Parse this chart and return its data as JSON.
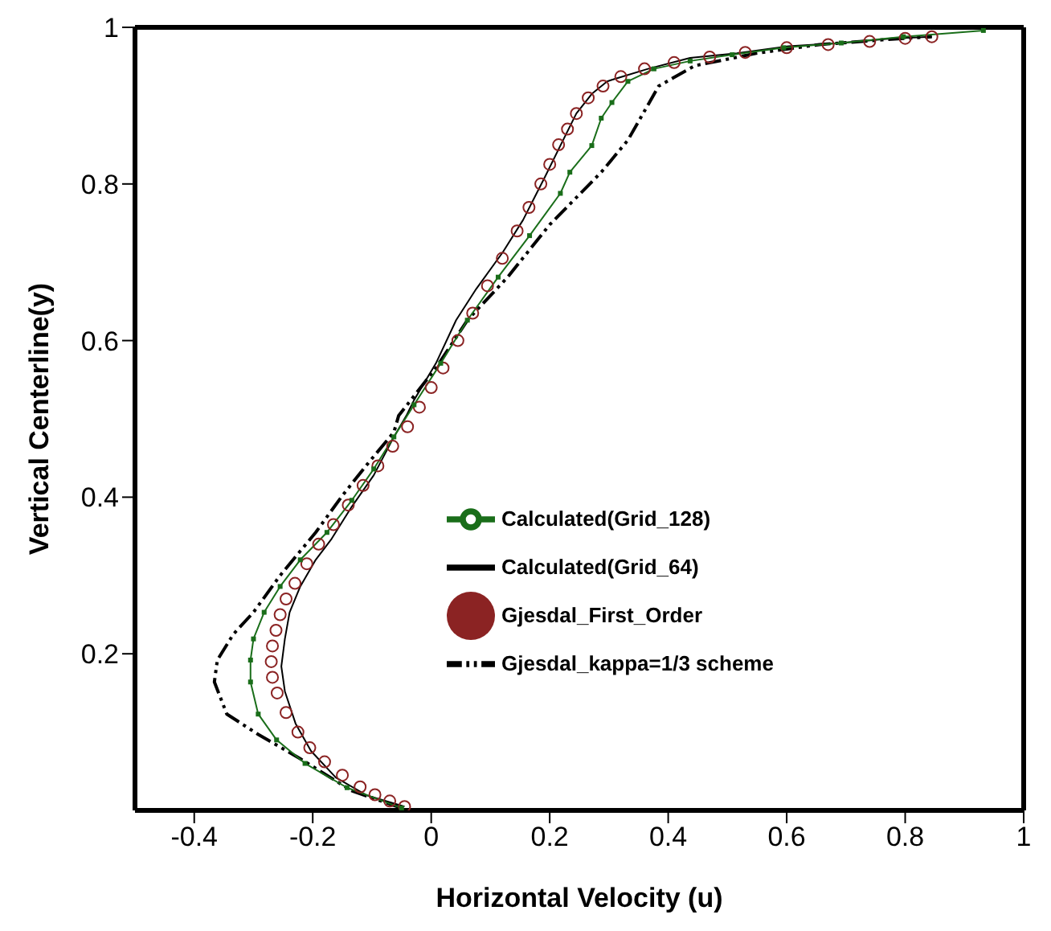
{
  "chart_data": {
    "type": "line",
    "xlabel": "Horizontal Velocity (u)",
    "ylabel": "Vertical Centerline(y)",
    "xlim": [
      -0.5,
      1
    ],
    "xticks": [
      -0.4,
      -0.2,
      0,
      0.2,
      0.4,
      0.6,
      0.8,
      1
    ],
    "ylim": [
      0,
      1
    ],
    "yticks": [
      0.2,
      0.4,
      0.6,
      0.8,
      1
    ],
    "legend": "right",
    "series": [
      {
        "name": "Calculated(Grid_64)",
        "type": "line",
        "color": "#000000",
        "marker": "none",
        "line_style": "solid",
        "x": [
          -0.045,
          -0.108,
          -0.161,
          -0.203,
          -0.229,
          -0.247,
          -0.253,
          -0.247,
          -0.239,
          -0.221,
          -0.195,
          -0.168,
          -0.134,
          -0.097,
          -0.063,
          -0.042,
          -0.029,
          0.008,
          0.042,
          0.076,
          0.121,
          0.155,
          0.192,
          0.218,
          0.245,
          0.271,
          0.297,
          0.305,
          0.366,
          0.437,
          0.516,
          0.603,
          0.692,
          0.779,
          0.845
        ],
        "values": [
          0.005,
          0.019,
          0.042,
          0.076,
          0.111,
          0.152,
          0.184,
          0.219,
          0.253,
          0.286,
          0.32,
          0.347,
          0.388,
          0.428,
          0.477,
          0.504,
          0.524,
          0.571,
          0.626,
          0.666,
          0.713,
          0.754,
          0.809,
          0.849,
          0.89,
          0.915,
          0.931,
          0.933,
          0.947,
          0.961,
          0.967,
          0.976,
          0.98,
          0.986,
          0.988
        ]
      },
      {
        "name": "Gjesdal_First_Order",
        "type": "scatter",
        "color": "#8b2323",
        "marker": "circle",
        "x": [
          -0.045,
          -0.07,
          -0.095,
          -0.12,
          -0.15,
          -0.18,
          -0.205,
          -0.225,
          -0.245,
          -0.26,
          -0.268,
          -0.27,
          -0.268,
          -0.262,
          -0.255,
          -0.245,
          -0.23,
          -0.21,
          -0.19,
          -0.165,
          -0.14,
          -0.115,
          -0.09,
          -0.065,
          -0.04,
          -0.02,
          0.0,
          0.02,
          0.045,
          0.07,
          0.095,
          0.12,
          0.145,
          0.165,
          0.185,
          0.2,
          0.215,
          0.23,
          0.245,
          0.265,
          0.29,
          0.32,
          0.36,
          0.41,
          0.47,
          0.53,
          0.6,
          0.67,
          0.74,
          0.8,
          0.845
        ],
        "values": [
          0.005,
          0.012,
          0.02,
          0.03,
          0.045,
          0.062,
          0.08,
          0.1,
          0.125,
          0.15,
          0.17,
          0.19,
          0.21,
          0.23,
          0.25,
          0.27,
          0.29,
          0.315,
          0.34,
          0.365,
          0.39,
          0.415,
          0.44,
          0.465,
          0.49,
          0.515,
          0.54,
          0.565,
          0.6,
          0.635,
          0.67,
          0.705,
          0.74,
          0.77,
          0.8,
          0.825,
          0.85,
          0.87,
          0.89,
          0.91,
          0.925,
          0.937,
          0.947,
          0.955,
          0.962,
          0.968,
          0.974,
          0.978,
          0.982,
          0.986,
          0.988
        ]
      },
      {
        "name": "Gjesdal_kappa=1/3 scheme",
        "type": "line",
        "color": "#000000",
        "marker": "none",
        "line_style": "dashdot",
        "x": [
          -0.05,
          -0.134,
          -0.221,
          -0.292,
          -0.345,
          -0.366,
          -0.361,
          -0.334,
          -0.3,
          -0.255,
          -0.195,
          -0.15,
          -0.108,
          -0.063,
          -0.055,
          0.008,
          0.061,
          0.129,
          0.2,
          0.287,
          0.332,
          0.384,
          0.445,
          0.55,
          0.655,
          0.761,
          0.845
        ],
        "values": [
          0.003,
          0.025,
          0.066,
          0.097,
          0.123,
          0.164,
          0.192,
          0.225,
          0.253,
          0.3,
          0.355,
          0.402,
          0.442,
          0.483,
          0.504,
          0.565,
          0.626,
          0.681,
          0.748,
          0.815,
          0.856,
          0.925,
          0.951,
          0.967,
          0.978,
          0.984,
          0.988
        ]
      },
      {
        "name": "Calculated(Grid_128)",
        "type": "line",
        "color": "#1a6e1a",
        "marker": "square",
        "line_style": "solid",
        "x": [
          -0.05,
          -0.142,
          -0.213,
          -0.261,
          -0.292,
          -0.305,
          -0.305,
          -0.3,
          -0.282,
          -0.255,
          -0.221,
          -0.176,
          -0.134,
          -0.097,
          -0.063,
          -0.029,
          0.016,
          0.061,
          0.113,
          0.166,
          0.218,
          0.234,
          0.271,
          0.287,
          0.305,
          0.332,
          0.376,
          0.437,
          0.508,
          0.595,
          0.692,
          0.797,
          0.932
        ],
        "values": [
          0.003,
          0.029,
          0.06,
          0.09,
          0.123,
          0.164,
          0.192,
          0.219,
          0.253,
          0.286,
          0.32,
          0.355,
          0.396,
          0.436,
          0.477,
          0.518,
          0.571,
          0.626,
          0.681,
          0.734,
          0.788,
          0.815,
          0.849,
          0.884,
          0.904,
          0.931,
          0.947,
          0.957,
          0.965,
          0.974,
          0.98,
          0.988,
          0.996
        ]
      }
    ]
  }
}
